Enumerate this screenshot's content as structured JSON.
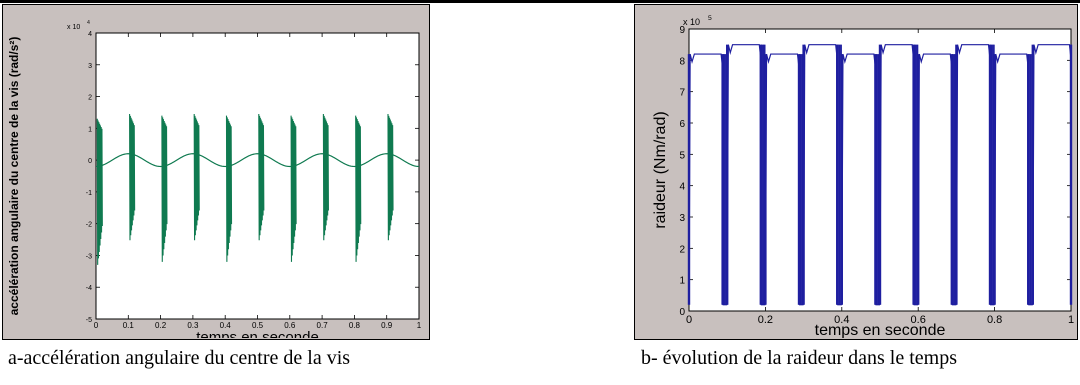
{
  "captions": {
    "a": "a-accélération angulaire du centre de la vis",
    "b": "b- évolution de la raideur dans le temps"
  },
  "colors": {
    "panel_bg": "#c8c0be",
    "series_a": "#0f7a50",
    "series_b": "#1f1fa0"
  },
  "chart_data": [
    {
      "type": "line",
      "xlabel": "temps en seconde",
      "ylabel": "accélération angulaire du centre de la vis (rad/s²)",
      "y_multiplier": "x 10",
      "y_multiplier_exp": "4",
      "xlim": [
        0,
        1
      ],
      "ylim": [
        -50000,
        40000
      ],
      "x_ticks": [
        "0",
        "0.1",
        "0.2",
        "0.3",
        "0.4",
        "0.5",
        "0.6",
        "0.7",
        "0.8",
        "0.9",
        "1"
      ],
      "y_ticks": [
        "-5",
        "-4",
        "-3",
        "-2",
        "-1",
        "0",
        "1",
        "2",
        "3",
        "4"
      ],
      "y_tick_values": [
        -50000,
        -40000,
        -30000,
        -20000,
        -10000,
        0,
        10000,
        20000,
        30000,
        40000
      ],
      "series": [
        {
          "base_amplitude": 2000,
          "base_period": 0.2,
          "spike_times": [
            0.0,
            0.1,
            0.2,
            0.3,
            0.4,
            0.5,
            0.6,
            0.7,
            0.8,
            0.9
          ],
          "spike_max": [
            13000,
            14500,
            14000,
            14500,
            14000,
            14500,
            14000,
            14500,
            14000,
            14500
          ],
          "spike_min": [
            -34000,
            -26000,
            -33000,
            -26000,
            -33000,
            -26000,
            -33000,
            -26000,
            -33000,
            -26000
          ]
        }
      ]
    },
    {
      "type": "line",
      "xlabel": "temps en seconde",
      "ylabel": "raideur (Nm/rad)",
      "y_multiplier": "x 10",
      "y_multiplier_exp": "5",
      "xlim": [
        0,
        1
      ],
      "ylim": [
        0,
        900000
      ],
      "x_ticks": [
        "0",
        "0.2",
        "0.4",
        "0.6",
        "0.8",
        "1"
      ],
      "x_tick_values": [
        0,
        0.2,
        0.4,
        0.6,
        0.8,
        1
      ],
      "y_ticks": [
        "0",
        "1",
        "2",
        "3",
        "4",
        "5",
        "6",
        "7",
        "8",
        "9"
      ],
      "y_tick_values": [
        0,
        100000,
        200000,
        300000,
        400000,
        500000,
        600000,
        700000,
        800000,
        900000
      ],
      "series": [
        {
          "high_values": [
            820000,
            850000,
            820000,
            850000,
            820000,
            850000,
            820000,
            850000,
            820000,
            850000
          ],
          "high_intervals": [
            [
              0.0,
              0.088
            ],
            [
              0.1,
              0.188
            ],
            [
              0.2,
              0.288
            ],
            [
              0.3,
              0.388
            ],
            [
              0.4,
              0.488
            ],
            [
              0.5,
              0.588
            ],
            [
              0.6,
              0.688
            ],
            [
              0.7,
              0.788
            ],
            [
              0.8,
              0.888
            ],
            [
              0.9,
              1.0
            ]
          ],
          "low_value": 20000
        }
      ]
    }
  ]
}
